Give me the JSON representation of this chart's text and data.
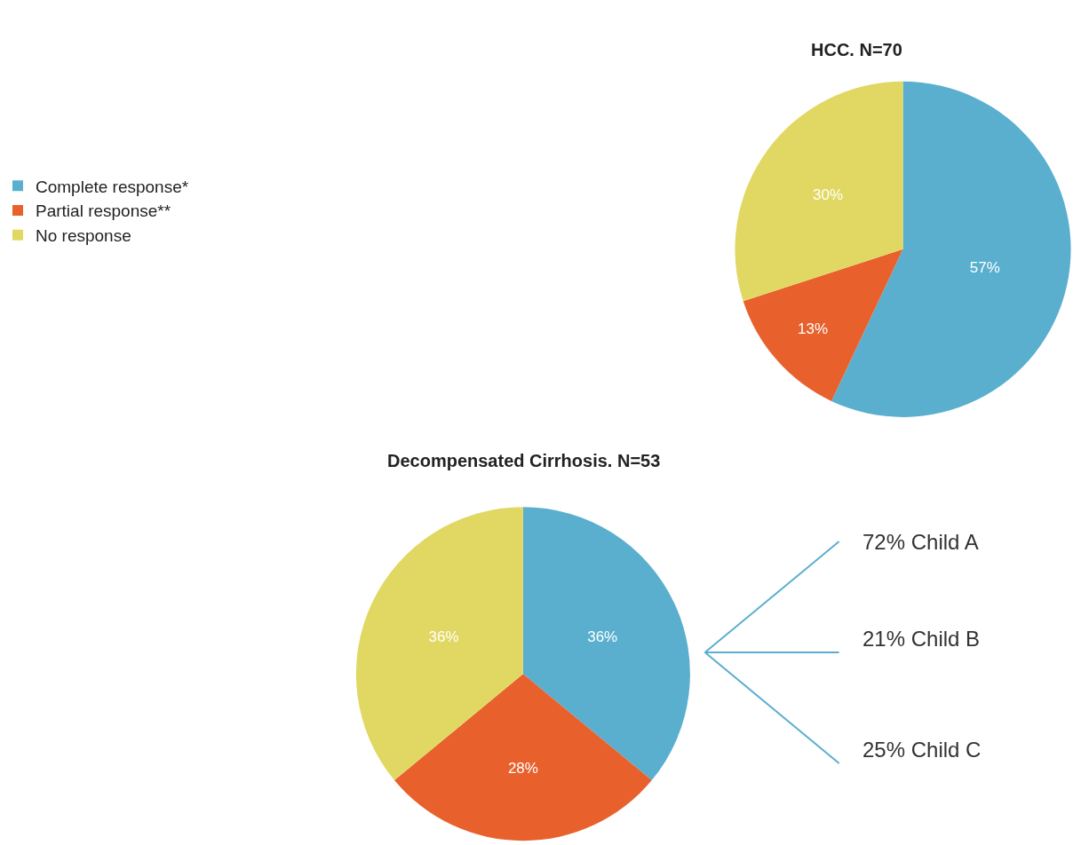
{
  "chart_data": [
    {
      "type": "pie",
      "title": "HCC. N=70",
      "categories": [
        "Complete response*",
        "Partial response**",
        "No response"
      ],
      "values": [
        57,
        13,
        30
      ],
      "value_labels": [
        "57%",
        "13%",
        "30%"
      ],
      "colors": [
        "#5aafcf",
        "#e8602c",
        "#e1d863"
      ],
      "legend": "left"
    },
    {
      "type": "pie",
      "title": "Decompensated Cirrhosis. N=53",
      "categories": [
        null,
        null,
        null
      ],
      "values": [
        36,
        28,
        36
      ],
      "value_labels": [
        "36%",
        "28%",
        "36%"
      ],
      "colors": [
        "#5aafcf",
        "#e8602c",
        "#e1d863"
      ],
      "annotations": [
        "72% Child A",
        "21% Child B",
        "25% Child C"
      ]
    }
  ]
}
